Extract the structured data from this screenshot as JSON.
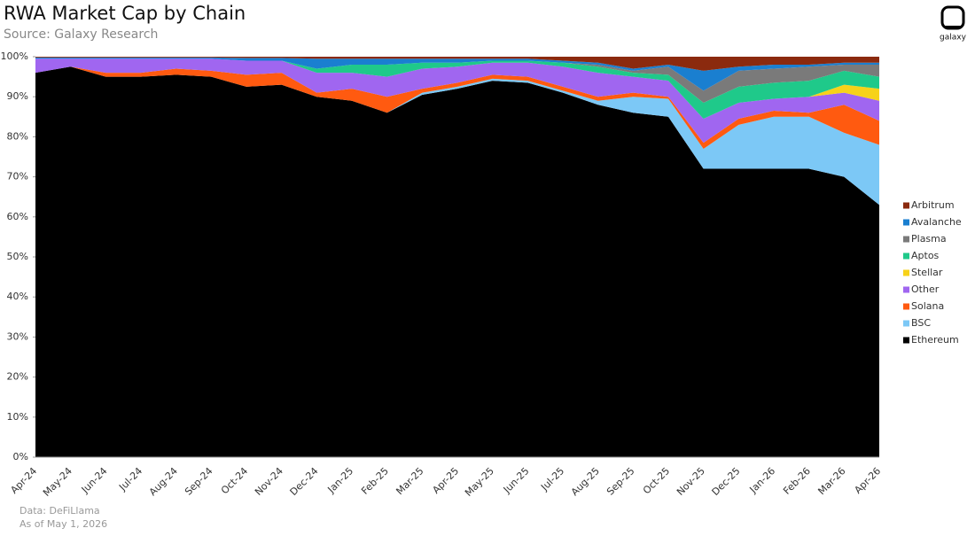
{
  "chart_data": {
    "type": "stacked_area",
    "title": "RWA Market Cap by Chain",
    "subtitle": "Source: Galaxy Research",
    "notes": [
      "Data: DeFiLlama",
      "As of May 1, 2026"
    ],
    "logo": "galaxy",
    "legend": "right",
    "x": [
      "Apr-24",
      "May-24",
      "Jun-24",
      "Jul-24",
      "Aug-24",
      "Sep-24",
      "Oct-24",
      "Nov-24",
      "Dec-24",
      "Jan-25",
      "Feb-25",
      "Mar-25",
      "Apr-25",
      "May-25",
      "Jun-25",
      "Jul-25",
      "Aug-25",
      "Sep-25",
      "Oct-25",
      "Nov-25",
      "Dec-25",
      "Jan-26",
      "Feb-26",
      "Mar-26",
      "Apr-26"
    ],
    "ylim": [
      0,
      100
    ],
    "yticks": [
      {
        "value": 0,
        "label": "0%"
      },
      {
        "value": 10,
        "label": "10%"
      },
      {
        "value": 20,
        "label": "20%"
      },
      {
        "value": 30,
        "label": "30%"
      },
      {
        "value": 40,
        "label": "40%"
      },
      {
        "value": 50,
        "label": "50%"
      },
      {
        "value": 60,
        "label": "60%"
      },
      {
        "value": 70,
        "label": "70%"
      },
      {
        "value": 80,
        "label": "80%"
      },
      {
        "value": 90,
        "label": "90%"
      },
      {
        "value": 100,
        "label": "100%"
      }
    ],
    "series": [
      {
        "name": "Ethereum",
        "color": "#000000",
        "values": [
          96,
          97.5,
          95,
          95,
          95.5,
          95,
          92.5,
          93,
          90,
          89,
          86,
          90.5,
          92,
          94,
          93.5,
          91,
          88,
          86,
          85,
          72,
          72,
          72,
          72,
          70,
          63
        ]
      },
      {
        "name": "BSC",
        "color": "#7cc8f6",
        "values": [
          0,
          0,
          0,
          0,
          0,
          0,
          0,
          0,
          0,
          0,
          0,
          0.5,
          0.5,
          0.5,
          0.5,
          0.5,
          1,
          4,
          4.5,
          5,
          11,
          13,
          13,
          11,
          15
        ]
      },
      {
        "name": "Solana",
        "color": "#ff5a10",
        "values": [
          0,
          0,
          1,
          1,
          1.5,
          1.5,
          3,
          3,
          1,
          3,
          4,
          1,
          1,
          1,
          1,
          1,
          1,
          1,
          0.5,
          1.5,
          1.5,
          1.5,
          1,
          7,
          6
        ]
      },
      {
        "name": "Other",
        "color": "#a066f0",
        "values": [
          3.5,
          2,
          3.5,
          3.5,
          2.5,
          3,
          3.5,
          3,
          5,
          4,
          5,
          5,
          4,
          3,
          3.5,
          5,
          6,
          4,
          4,
          6,
          4,
          3,
          4,
          3,
          5
        ]
      },
      {
        "name": "Stellar",
        "color": "#f7d21a",
        "values": [
          0,
          0,
          0,
          0,
          0,
          0,
          0,
          0,
          0,
          0,
          0,
          0,
          0,
          0,
          0,
          0,
          0,
          0,
          0,
          0,
          0,
          0,
          0,
          2,
          3
        ]
      },
      {
        "name": "Aptos",
        "color": "#1fc98a",
        "values": [
          0,
          0,
          0,
          0,
          0,
          0,
          0,
          0,
          1,
          2,
          3,
          1.5,
          1,
          0.5,
          0.5,
          1,
          1.5,
          1,
          1.5,
          4,
          4,
          4,
          4,
          3.5,
          3
        ]
      },
      {
        "name": "Plasma",
        "color": "#7a7a7a",
        "values": [
          0,
          0,
          0,
          0,
          0,
          0,
          0,
          0,
          0,
          0,
          0,
          0,
          0,
          0,
          0,
          0,
          0.5,
          0.5,
          2,
          3,
          4,
          3.5,
          3.5,
          1.5,
          3
        ]
      },
      {
        "name": "Avalanche",
        "color": "#1a7fd0",
        "values": [
          0.3,
          0.3,
          0.3,
          0.3,
          0.3,
          0.3,
          0.7,
          0.7,
          2.5,
          1.5,
          1.5,
          1,
          1,
          0.5,
          0.5,
          0.5,
          0.5,
          0.5,
          0.5,
          5,
          1,
          1,
          0.5,
          0.5,
          0.5
        ]
      },
      {
        "name": "Arbitrum",
        "color": "#8b2a0e",
        "values": [
          0.2,
          0.2,
          0.2,
          0.2,
          0.2,
          0.2,
          0.3,
          0.3,
          0.5,
          0.5,
          0.5,
          0.5,
          0.5,
          0.5,
          0.5,
          1,
          1.5,
          3,
          2,
          3.5,
          2.5,
          2,
          2,
          1.5,
          1.5
        ]
      }
    ]
  }
}
